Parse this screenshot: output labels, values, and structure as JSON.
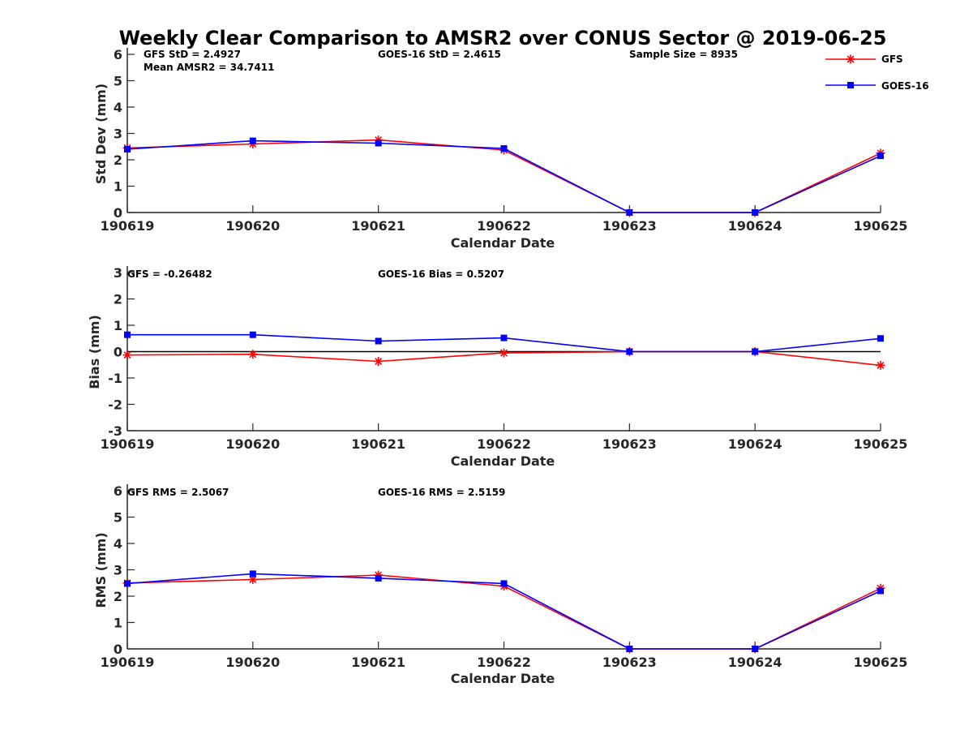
{
  "figure": {
    "title": "Weekly Clear Comparison to AMSR2 over CONUS Sector @ 2019-06-25"
  },
  "legend": {
    "placement": "top-right",
    "items": [
      {
        "name": "GFS",
        "color": "#ff0000",
        "marker": "asterisk"
      },
      {
        "name": "GOES-16",
        "color": "#0000ff",
        "marker": "square"
      }
    ]
  },
  "chart_data": [
    {
      "type": "line",
      "title": "",
      "xlabel": "Calendar Date",
      "ylabel": "Std Dev (mm)",
      "ylim": [
        0,
        6
      ],
      "yticks": [
        "0",
        "1",
        "2",
        "3",
        "4",
        "5",
        "6"
      ],
      "categories": [
        "190619",
        "190620",
        "190621",
        "190622",
        "190623",
        "190624",
        "190625"
      ],
      "series": [
        {
          "name": "GFS",
          "color": "#ff0000",
          "values": [
            2.45,
            2.6,
            2.75,
            2.37,
            0,
            0,
            2.25
          ]
        },
        {
          "name": "GOES-16",
          "color": "#0000ff",
          "values": [
            2.4,
            2.72,
            2.63,
            2.43,
            0,
            0,
            2.15
          ]
        }
      ],
      "zero_line": false,
      "annotations": [
        "GFS StD = 2.4927",
        "Mean AMSR2 = 34.7411",
        "GOES-16 StD = 2.4615",
        "Sample Size = 8935"
      ]
    },
    {
      "type": "line",
      "title": "",
      "xlabel": "Calendar Date",
      "ylabel": "Bias (mm)",
      "ylim": [
        -3,
        3
      ],
      "yticks": [
        "-3",
        "-2",
        "-1",
        "0",
        "1",
        "2",
        "3"
      ],
      "categories": [
        "190619",
        "190620",
        "190621",
        "190622",
        "190623",
        "190624",
        "190625"
      ],
      "series": [
        {
          "name": "GFS",
          "color": "#ff0000",
          "values": [
            -0.13,
            -0.1,
            -0.37,
            -0.05,
            0,
            0,
            -0.52
          ]
        },
        {
          "name": "GOES-16",
          "color": "#0000ff",
          "values": [
            0.64,
            0.64,
            0.4,
            0.52,
            0,
            0,
            0.5
          ]
        }
      ],
      "zero_line": true,
      "annotations": [
        "GFS = -0.26482",
        "GOES-16 Bias  = 0.5207"
      ]
    },
    {
      "type": "line",
      "title": "",
      "xlabel": "Calendar Date",
      "ylabel": "RMS (mm)",
      "ylim": [
        0,
        6
      ],
      "yticks": [
        "0",
        "1",
        "2",
        "3",
        "4",
        "5",
        "6"
      ],
      "categories": [
        "190619",
        "190620",
        "190621",
        "190622",
        "190623",
        "190624",
        "190625"
      ],
      "series": [
        {
          "name": "GFS",
          "color": "#ff0000",
          "values": [
            2.5,
            2.63,
            2.8,
            2.38,
            0,
            0,
            2.3
          ]
        },
        {
          "name": "GOES-16",
          "color": "#0000ff",
          "values": [
            2.48,
            2.85,
            2.68,
            2.48,
            0,
            0,
            2.2
          ]
        }
      ],
      "zero_line": false,
      "annotations": [
        "GFS RMS = 2.5067",
        "GOES-16 RMS = 2.5159"
      ]
    }
  ]
}
